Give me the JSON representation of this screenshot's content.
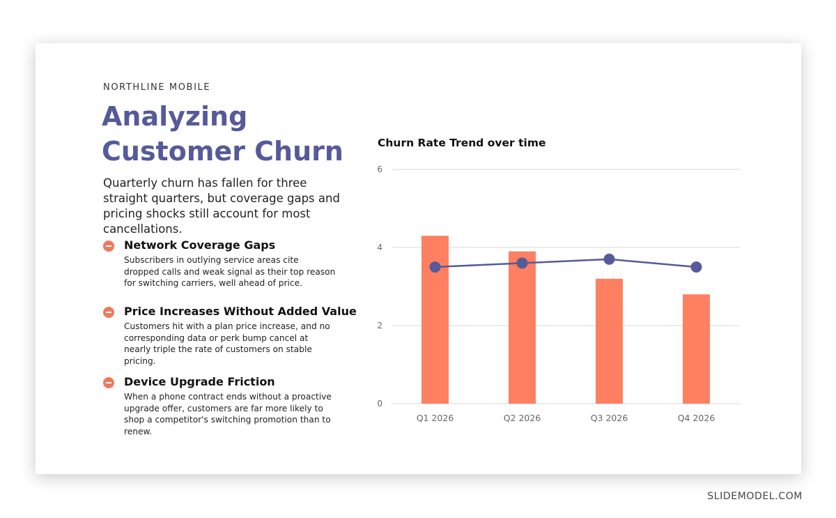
{
  "brand": "NORTHLINE MOBILE",
  "title": "Analyzing Customer Churn",
  "subtitle": "Quarterly churn has fallen for three straight quarters, but coverage gaps and pricing shocks still account for most cancellations.",
  "items": [
    {
      "title": "Network Coverage Gaps",
      "body": "Subscribers in outlying service areas cite dropped calls and weak signal as their top reason for switching carriers, well ahead of price."
    },
    {
      "title": "Price Increases Without Added Value",
      "body": "Customers hit with a plan price increase, and no corresponding data or perk bump cancel at nearly triple the rate of customers on stable pricing."
    },
    {
      "title": "Device Upgrade Friction",
      "body": "When a phone contract ends without a proactive upgrade offer, customers are far more likely to shop a competitor's switching promotion than to renew."
    }
  ],
  "chart_data": {
    "type": "bar",
    "title": "Churn Rate Trend over time",
    "categories": [
      "Q1 2026",
      "Q2 2026",
      "Q3 2026",
      "Q4 2026"
    ],
    "series": [
      {
        "type": "bar",
        "values": [
          4.3,
          3.9,
          3.2,
          2.8
        ],
        "color": "#ff7f61"
      },
      {
        "type": "line",
        "values": [
          3.5,
          3.6,
          3.7,
          3.5
        ],
        "color": "#555a99"
      }
    ],
    "ylim": [
      0,
      6
    ],
    "yticks": [
      0,
      2,
      4,
      6
    ],
    "grid": true,
    "xlabel": "",
    "ylabel": ""
  },
  "footer": "SLIDEMODEL.COM",
  "colors": {
    "accent": "#555a99",
    "bullet": "#f0795c",
    "bar": "#ff7f61"
  }
}
